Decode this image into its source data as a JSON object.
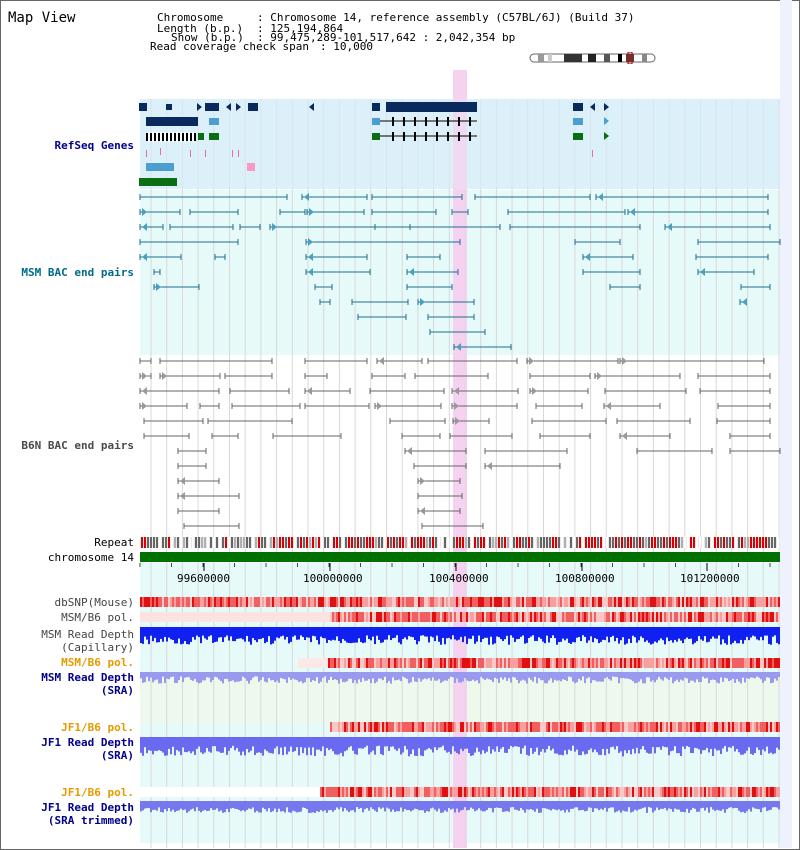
{
  "page": {
    "title": "Map View"
  },
  "header": {
    "chromosome_key": "Chromosome",
    "chromosome_value": ": Chromosome 14, reference assembly (C57BL/6J) (Build 37)",
    "length_key": "Length (b.p.)",
    "length_value": ": 125,194,864",
    "show_key": "Show (b.p.)",
    "show_value": ": 99,475,289-101,517,642 : 2,042,354 bp",
    "span_key": "Read coverage check span",
    "span_value": ": 10,000"
  },
  "tracks": {
    "refseq": "RefSeq Genes",
    "msm_bac": "MSM BAC end pairs",
    "b6n_bac": "B6N BAC end pairs",
    "repeat": "Repeat",
    "chromosome": "chromosome 14",
    "dbsnp": "dbSNP(Mouse)",
    "msm_b6_pol": "MSM/B6 pol.",
    "msm_depth_cap_1": "MSM Read Depth",
    "msm_depth_cap_2": "(Capillary)",
    "msm_b6_pol_sra": "MSM/B6 pol.",
    "msm_depth_sra_1": "MSM Read Depth",
    "msm_depth_sra_2": "(SRA)",
    "jf1_b6_pol": "JF1/B6 pol.",
    "jf1_depth_1": "JF1 Read Depth",
    "jf1_depth_2": "(SRA)",
    "jf1_b6_pol_trim": "JF1/B6 pol.",
    "jf1_depth_trim_1": "JF1 Read Depth",
    "jf1_depth_trim_2": "(SRA trimmed)"
  },
  "axis": {
    "ticks": [
      "99600000",
      "100000000",
      "100400000",
      "100800000",
      "101200000"
    ]
  },
  "colors": {
    "refseq_bg": "#dcf0fa",
    "bac_bg": "#e6fafa",
    "highlight": "#f5d2f0",
    "msm_label": "#006a8a",
    "navy_label": "#00008b",
    "orange_label": "#e69a00",
    "gene_navy": "#0a2a5e",
    "gene_blue": "#4a9fd0",
    "gene_green": "#0b6e12",
    "chrom_green": "#007000"
  }
}
